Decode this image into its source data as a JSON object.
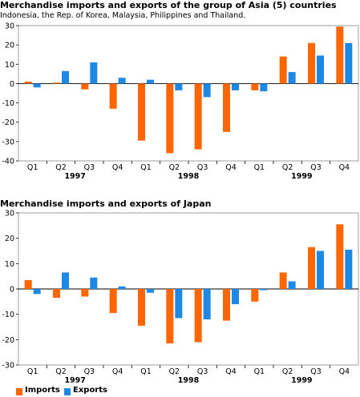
{
  "colors": {
    "imports": "#ff6600",
    "exports": "#1e88e5",
    "axis": "#000000",
    "grid": "#c8c8c8"
  },
  "legend": {
    "imports": "Imports",
    "exports": "Exports"
  },
  "chart_data": [
    {
      "type": "bar",
      "title": "Merchandise imports and exports of the group of Asia (5) countries",
      "subtitle": "Indonesia, the Rep. of Korea, Malaysia, Philippines and Thailand.",
      "categories": [
        "Q1",
        "Q2",
        "Q3",
        "Q4",
        "Q1",
        "Q2",
        "Q3",
        "Q4",
        "Q1",
        "Q2",
        "Q3",
        "Q4"
      ],
      "years": [
        {
          "label": "1997",
          "start": 0,
          "end": 3
        },
        {
          "label": "1998",
          "start": 4,
          "end": 7
        },
        {
          "label": "1999",
          "start": 8,
          "end": 11
        }
      ],
      "series": [
        {
          "name": "Imports",
          "values": [
            1,
            0.5,
            -3,
            -13,
            -29.5,
            -36,
            -34,
            -25,
            -3.5,
            14,
            21,
            29.5
          ]
        },
        {
          "name": "Exports",
          "values": [
            -2,
            6.5,
            11,
            3,
            2,
            -3.5,
            -7,
            -3.5,
            -4,
            6,
            14.5,
            21
          ]
        }
      ],
      "yticks": [
        30,
        20,
        10,
        0,
        -10,
        -20,
        -30,
        -40
      ],
      "ylim": [
        -40,
        30
      ],
      "grid": false,
      "xlabel": "",
      "ylabel": ""
    },
    {
      "type": "bar",
      "title": "Merchandise imports and exports of Japan",
      "categories": [
        "Q1",
        "Q2",
        "Q3",
        "Q4",
        "Q1",
        "Q2",
        "Q3",
        "Q4",
        "Q1",
        "Q2",
        "Q3",
        "Q4"
      ],
      "years": [
        {
          "label": "1997",
          "start": 0,
          "end": 3
        },
        {
          "label": "1998",
          "start": 4,
          "end": 7
        },
        {
          "label": "1999",
          "start": 8,
          "end": 11
        }
      ],
      "series": [
        {
          "name": "Imports",
          "values": [
            3.5,
            -3.5,
            -3,
            -9.5,
            -14.5,
            -21.5,
            -21,
            -12.5,
            -5,
            6.5,
            16.5,
            25.5
          ]
        },
        {
          "name": "Exports",
          "values": [
            -2,
            6.5,
            4.5,
            1,
            -1.5,
            -11.5,
            -12,
            -6,
            -0.5,
            3,
            15,
            15.5
          ]
        }
      ],
      "yticks": [
        30,
        20,
        10,
        0,
        -10,
        -20,
        -30
      ],
      "ylim": [
        -30,
        30
      ],
      "grid": false,
      "legend_position": "bottom-left",
      "xlabel": "",
      "ylabel": ""
    }
  ]
}
